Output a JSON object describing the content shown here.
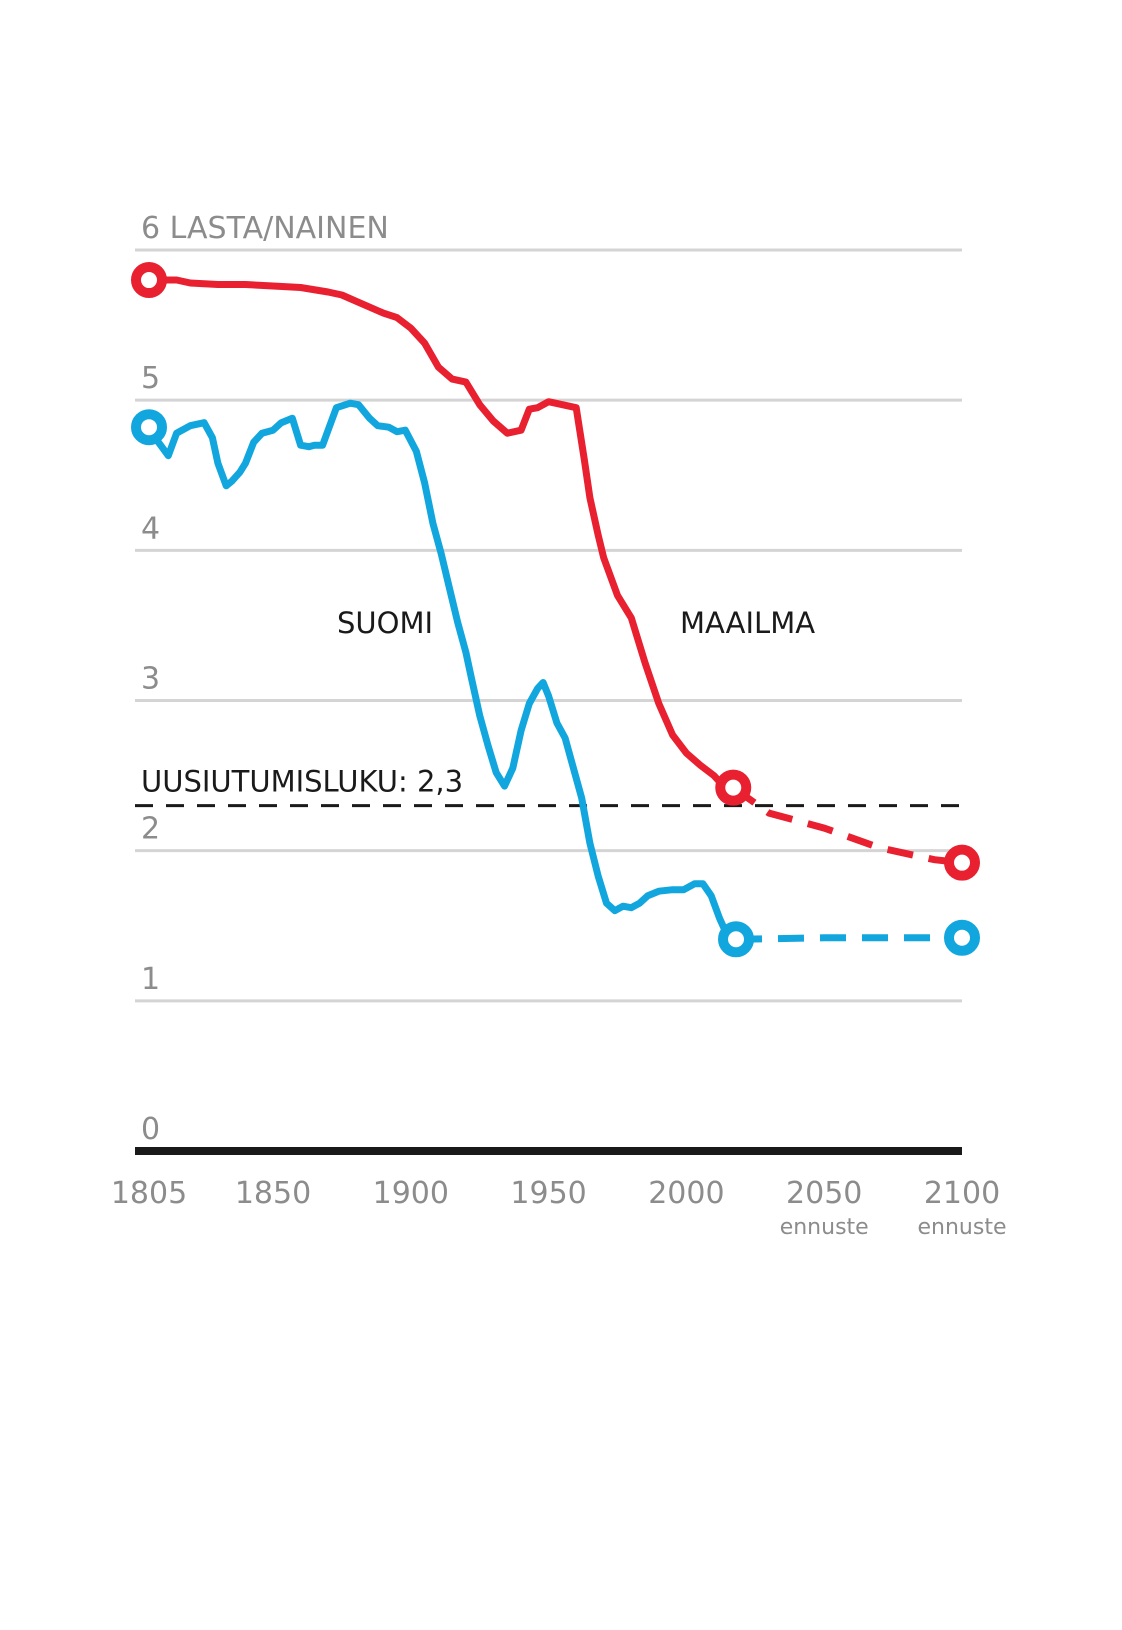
{
  "chart_data": {
    "type": "line",
    "ylabel": "6 LASTA/NAINEN",
    "xlim": [
      1805,
      2100
    ],
    "ylim": [
      0,
      6
    ],
    "y_ticks": [
      "0",
      "1",
      "2",
      "3",
      "4",
      "5"
    ],
    "x_ticks": [
      {
        "value": 1805,
        "label": "1805",
        "sub": ""
      },
      {
        "value": 1850,
        "label": "1850",
        "sub": ""
      },
      {
        "value": 1900,
        "label": "1900",
        "sub": ""
      },
      {
        "value": 1950,
        "label": "1950",
        "sub": ""
      },
      {
        "value": 2000,
        "label": "2000",
        "sub": ""
      },
      {
        "value": 2050,
        "label": "2050",
        "sub": "ennuste"
      },
      {
        "value": 2100,
        "label": "2100",
        "sub": "ennuste"
      }
    ],
    "reference_line": {
      "value": 2.3,
      "label": "UUSIUTUMISLUKU: 2,3"
    },
    "series": [
      {
        "name": "MAAILMA",
        "color": "#e8202f",
        "points": [
          [
            1805,
            5.8
          ],
          [
            1810,
            5.8
          ],
          [
            1815,
            5.8
          ],
          [
            1820,
            5.78
          ],
          [
            1830,
            5.77
          ],
          [
            1840,
            5.77
          ],
          [
            1850,
            5.76
          ],
          [
            1860,
            5.75
          ],
          [
            1870,
            5.72
          ],
          [
            1875,
            5.7
          ],
          [
            1880,
            5.66
          ],
          [
            1885,
            5.62
          ],
          [
            1890,
            5.58
          ],
          [
            1895,
            5.55
          ],
          [
            1900,
            5.48
          ],
          [
            1905,
            5.38
          ],
          [
            1910,
            5.22
          ],
          [
            1915,
            5.14
          ],
          [
            1920,
            5.12
          ],
          [
            1925,
            4.97
          ],
          [
            1930,
            4.86
          ],
          [
            1935,
            4.78
          ],
          [
            1940,
            4.8
          ],
          [
            1943,
            4.94
          ],
          [
            1946,
            4.95
          ],
          [
            1950,
            4.99
          ],
          [
            1955,
            4.97
          ],
          [
            1960,
            4.95
          ],
          [
            1963,
            4.6
          ],
          [
            1965,
            4.35
          ],
          [
            1968,
            4.1
          ],
          [
            1970,
            3.95
          ],
          [
            1975,
            3.7
          ],
          [
            1980,
            3.55
          ],
          [
            1985,
            3.25
          ],
          [
            1990,
            2.98
          ],
          [
            1995,
            2.77
          ],
          [
            2000,
            2.65
          ],
          [
            2005,
            2.57
          ],
          [
            2010,
            2.5
          ],
          [
            2013,
            2.44
          ],
          [
            2017,
            2.42
          ]
        ],
        "forecast": [
          [
            2017,
            2.42
          ],
          [
            2030,
            2.25
          ],
          [
            2050,
            2.15
          ],
          [
            2070,
            2.02
          ],
          [
            2090,
            1.94
          ],
          [
            2100,
            1.92
          ]
        ]
      },
      {
        "name": "SUOMI",
        "color": "#12a6df",
        "points": [
          [
            1805,
            4.82
          ],
          [
            1808,
            4.73
          ],
          [
            1812,
            4.63
          ],
          [
            1815,
            4.78
          ],
          [
            1820,
            4.83
          ],
          [
            1825,
            4.85
          ],
          [
            1828,
            4.75
          ],
          [
            1830,
            4.58
          ],
          [
            1833,
            4.43
          ],
          [
            1835,
            4.46
          ],
          [
            1838,
            4.52
          ],
          [
            1840,
            4.58
          ],
          [
            1843,
            4.72
          ],
          [
            1846,
            4.78
          ],
          [
            1850,
            4.8
          ],
          [
            1853,
            4.85
          ],
          [
            1857,
            4.88
          ],
          [
            1860,
            4.7
          ],
          [
            1863,
            4.69
          ],
          [
            1865,
            4.7
          ],
          [
            1868,
            4.7
          ],
          [
            1870,
            4.8
          ],
          [
            1873,
            4.95
          ],
          [
            1878,
            4.98
          ],
          [
            1881,
            4.97
          ],
          [
            1885,
            4.88
          ],
          [
            1888,
            4.83
          ],
          [
            1892,
            4.82
          ],
          [
            1895,
            4.79
          ],
          [
            1898,
            4.8
          ],
          [
            1902,
            4.66
          ],
          [
            1905,
            4.45
          ],
          [
            1908,
            4.18
          ],
          [
            1911,
            3.98
          ],
          [
            1914,
            3.75
          ],
          [
            1917,
            3.52
          ],
          [
            1920,
            3.32
          ],
          [
            1922,
            3.15
          ],
          [
            1925,
            2.9
          ],
          [
            1928,
            2.7
          ],
          [
            1931,
            2.52
          ],
          [
            1934,
            2.43
          ],
          [
            1937,
            2.55
          ],
          [
            1940,
            2.8
          ],
          [
            1943,
            2.98
          ],
          [
            1946,
            3.08
          ],
          [
            1948,
            3.12
          ],
          [
            1950,
            3.03
          ],
          [
            1953,
            2.85
          ],
          [
            1956,
            2.75
          ],
          [
            1959,
            2.55
          ],
          [
            1962,
            2.35
          ],
          [
            1965,
            2.05
          ],
          [
            1968,
            1.83
          ],
          [
            1971,
            1.65
          ],
          [
            1974,
            1.6
          ],
          [
            1977,
            1.63
          ],
          [
            1980,
            1.62
          ],
          [
            1983,
            1.65
          ],
          [
            1986,
            1.7
          ],
          [
            1990,
            1.73
          ],
          [
            1995,
            1.74
          ],
          [
            1999,
            1.74
          ],
          [
            2003,
            1.78
          ],
          [
            2006,
            1.78
          ],
          [
            2009,
            1.7
          ],
          [
            2012,
            1.55
          ],
          [
            2015,
            1.43
          ],
          [
            2018,
            1.41
          ]
        ],
        "forecast": [
          [
            2018,
            1.41
          ],
          [
            2050,
            1.42
          ],
          [
            2100,
            1.42
          ]
        ]
      }
    ],
    "annotations": [
      {
        "text": "SUOMI",
        "series": "SUOMI"
      },
      {
        "text": "MAAILMA",
        "series": "MAAILMA"
      }
    ]
  }
}
